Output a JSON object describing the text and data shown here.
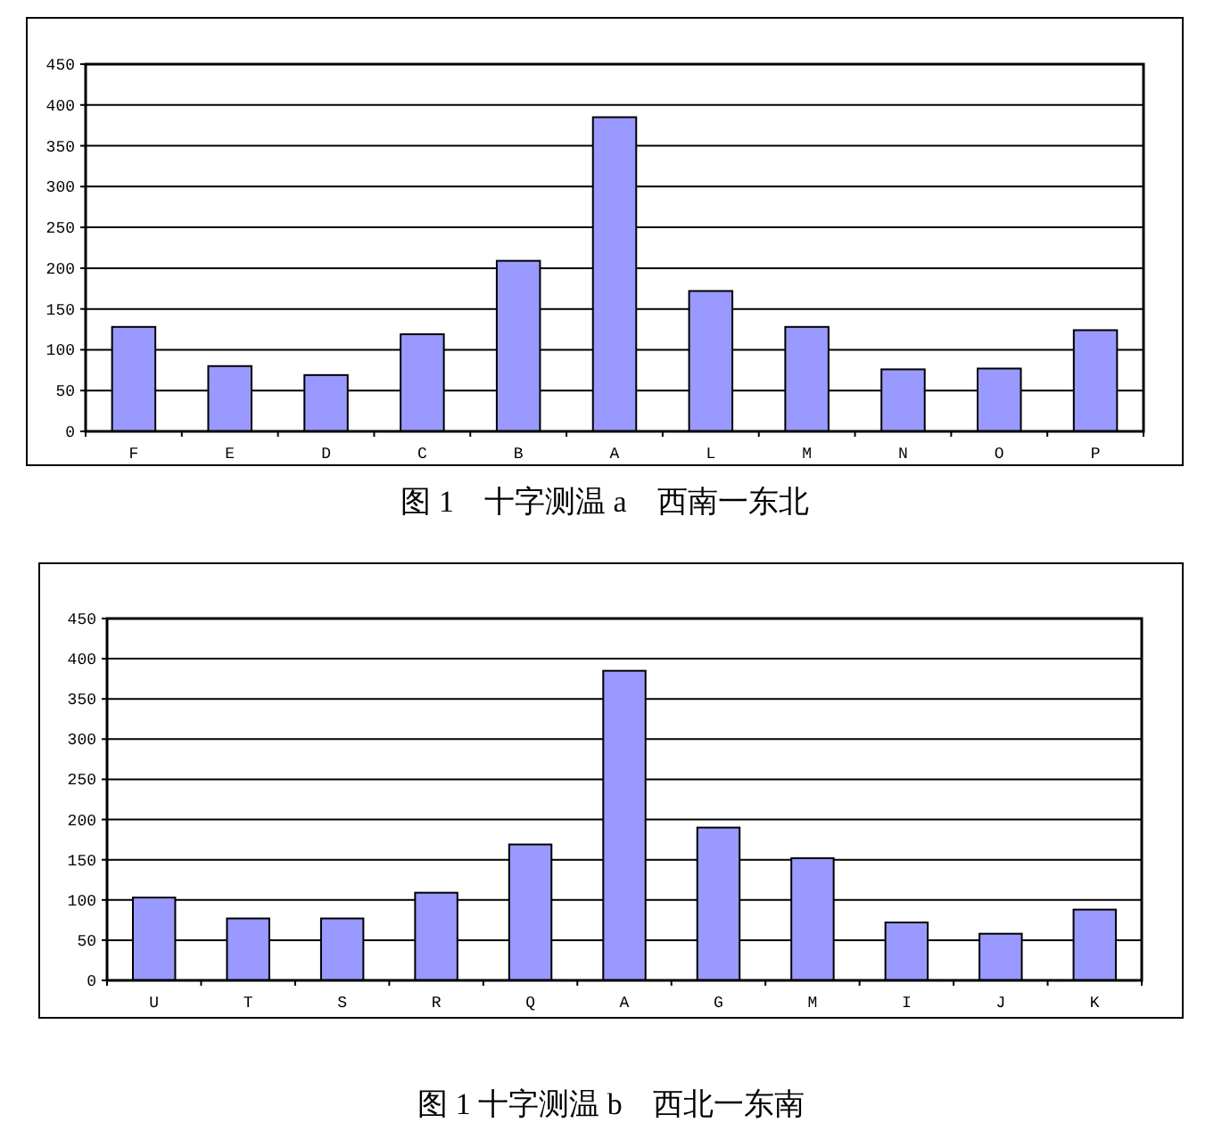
{
  "chart_data": [
    {
      "type": "bar",
      "title": "图 1　十字测温 a　西南一东北",
      "categories": [
        "F",
        "E",
        "D",
        "C",
        "B",
        "A",
        "L",
        "M",
        "N",
        "O",
        "P"
      ],
      "values": [
        128,
        80,
        69,
        119,
        209,
        385,
        172,
        128,
        76,
        77,
        124
      ],
      "color": "#9999ff",
      "ylim": [
        0,
        450
      ],
      "yticks": [
        0,
        50,
        100,
        150,
        200,
        250,
        300,
        350,
        400,
        450
      ],
      "grid": "y"
    },
    {
      "type": "bar",
      "title": "图 1 十字测温 b　西北一东南",
      "categories": [
        "U",
        "T",
        "S",
        "R",
        "Q",
        "A",
        "G",
        "M",
        "I",
        "J",
        "K"
      ],
      "values": [
        103,
        77,
        77,
        109,
        169,
        385,
        190,
        152,
        72,
        58,
        88
      ],
      "color": "#9999ff",
      "ylim": [
        0,
        450
      ],
      "yticks": [
        0,
        50,
        100,
        150,
        200,
        250,
        300,
        350,
        400,
        450
      ],
      "grid": "y"
    }
  ]
}
